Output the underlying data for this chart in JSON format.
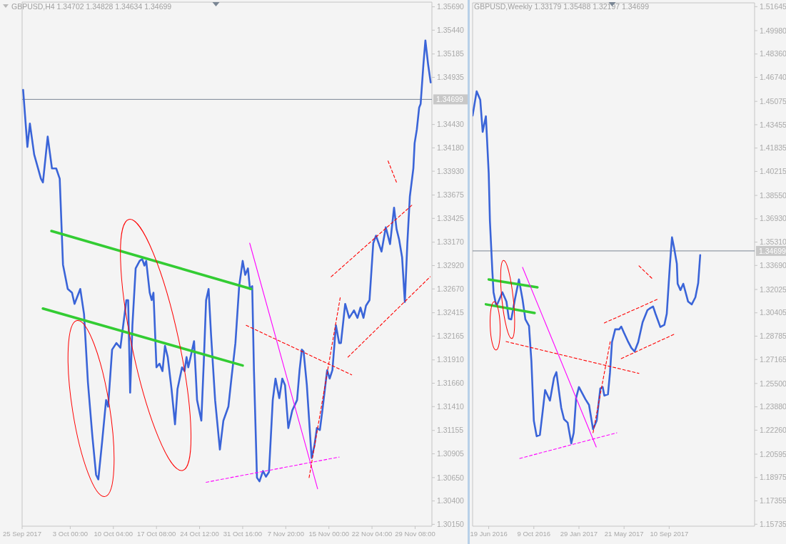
{
  "chart_data": [
    {
      "type": "line",
      "title": "GBPUSD,H4 1.34702 1.34828 1.34634 1.34699",
      "xlim": [
        "2017-09-25T00:00",
        "2017-12-02T03:00"
      ],
      "ylim": [
        1.3013,
        1.3574
      ],
      "xticks": [
        {
          "value": "2017-09-25T00:00",
          "label": "25 Sep 2017"
        },
        {
          "value": "2017-10-03T00:00",
          "label": "3 Oct 00:00"
        },
        {
          "value": "2017-10-10T04:00",
          "label": "10 Oct 04:00"
        },
        {
          "value": "2017-10-17T08:00",
          "label": "17 Oct 08:00"
        },
        {
          "value": "2017-10-24T12:00",
          "label": "24 Oct 12:00"
        },
        {
          "value": "2017-10-31T16:00",
          "label": "31 Oct 16:00"
        },
        {
          "value": "2017-11-07T20:00",
          "label": "7 Nov 20:00"
        },
        {
          "value": "2017-11-15T00:00",
          "label": "15 Nov 00:00"
        },
        {
          "value": "2017-11-22T04:00",
          "label": "22 Nov 04:00"
        },
        {
          "value": "2017-11-29T08:00",
          "label": "29 Nov 08:00"
        }
      ],
      "yticks": [
        {
          "value": 1.3569,
          "label": "1.35690"
        },
        {
          "value": 1.3544,
          "label": "1.35440"
        },
        1.35185,
        1.34935,
        {
          "value": 1.3443,
          "label": "1.34430"
        },
        {
          "value": 1.3418,
          "label": "1.34180"
        },
        {
          "value": 1.3393,
          "label": "1.33930"
        },
        1.33675,
        1.33425,
        {
          "value": 1.3317,
          "label": "1.33170"
        },
        {
          "value": 1.3292,
          "label": "1.32920"
        },
        {
          "value": 1.3267,
          "label": "1.32670"
        },
        1.32415,
        1.32165,
        {
          "value": 1.3191,
          "label": "1.31910"
        },
        {
          "value": 1.3166,
          "label": "1.31660"
        },
        {
          "value": 1.3141,
          "label": "1.31410"
        },
        1.31155,
        1.30905,
        {
          "value": 1.3065,
          "label": "1.30650"
        },
        {
          "value": 1.304,
          "label": "1.30400"
        },
        {
          "value": 1.3015,
          "label": "1.30150"
        }
      ],
      "ref_lines": [
        {
          "axis": "y",
          "value": 1.34699,
          "label": "1.34699",
          "color": "#7a8694"
        }
      ],
      "series": [
        {
          "color": "#3a64d8",
          "x": [
            "2017-09-25T04:00",
            "2017-09-25T21:00",
            "2017-09-26T07:00",
            "2017-09-27T00:00",
            "2017-09-28T03:00",
            "2017-09-28T11:00",
            "2017-09-29T06:00",
            "2017-09-29T23:00",
            "2017-09-30T16:00",
            "2017-10-01T06:00",
            "2017-10-01T19:00",
            "2017-10-02T14:00",
            "2017-10-03T07:00",
            "2017-10-03T17:00",
            "2017-10-04T16:00",
            "2017-10-05T07:00",
            "2017-10-05T22:30",
            "2017-10-06T16:00",
            "2017-10-07T07:00",
            "2017-10-07T16:00",
            "2017-10-08T07:00",
            "2017-10-08T23:00",
            "2017-10-09T07:00",
            "2017-10-09T23:00",
            "2017-10-10T16:00",
            "2017-10-11T08:00",
            "2017-10-12T08:00",
            "2017-10-12T15:00",
            "2017-10-12T23:00",
            "2017-10-13T08:00",
            "2017-10-13T21:00",
            "2017-10-14T13:00",
            "2017-10-14T23:00",
            "2017-10-15T08:00",
            "2017-10-15T15:00",
            "2017-10-16T05:00",
            "2017-10-16T13:00",
            "2017-10-16T20:00",
            "2017-10-17T08:00",
            "2017-10-17T20:00",
            "2017-10-18T08:00",
            "2017-10-18T18:00",
            "2017-10-19T05:00",
            "2017-10-19T20:00",
            "2017-10-20T10:00",
            "2017-10-20T20:00",
            "2017-10-21T14:00",
            "2017-10-22T00:00",
            "2017-10-22T08:00",
            "2017-10-22T15:00",
            "2017-10-23T14:00",
            "2017-10-24T02:00",
            "2017-10-24T19:00",
            "2017-10-25T05:00",
            "2017-10-25T14:00",
            "2017-10-26T00:00",
            "2017-10-26T10:00",
            "2017-10-27T02:00",
            "2017-10-27T21:00",
            "2017-10-28T11:00",
            "2017-10-29T07:00",
            "2017-10-29T19:00",
            "2017-10-30T11:00",
            "2017-10-31T02:00",
            "2017-10-31T16:00",
            "2017-11-01T02:00",
            "2017-11-01T13:00",
            "2017-11-01T21:00",
            "2017-11-02T06:00",
            "2017-11-02T13:00",
            "2017-11-03T01:00",
            "2017-11-03T11:00",
            "2017-11-04T01:00",
            "2017-11-04T13:00",
            "2017-11-05T01:00",
            "2017-11-05T16:00",
            "2017-11-06T03:00",
            "2017-11-06T18:00",
            "2017-11-07T06:00",
            "2017-11-07T17:00",
            "2017-11-08T06:00",
            "2017-11-08T22:00",
            "2017-11-09T17:00",
            "2017-11-10T03:00",
            "2017-11-10T12:00",
            "2017-11-10T19:00",
            "2017-11-11T08:00",
            "2017-11-12T03:00",
            "2017-11-12T14:00",
            "2017-11-13T00:00",
            "2017-11-13T12:00",
            "2017-11-13T22:00",
            "2017-11-14T17:00",
            "2017-11-15T03:00",
            "2017-11-15T14:00",
            "2017-11-16T04:00",
            "2017-11-16T17:00",
            "2017-11-17T00:00",
            "2017-11-17T17:00",
            "2017-11-18T09:00",
            "2017-11-19T04:00",
            "2017-11-19T18:00",
            "2017-11-20T06:00",
            "2017-11-20T18:00",
            "2017-11-21T04:00",
            "2017-11-21T18:00",
            "2017-11-22T09:00",
            "2017-11-22T20:00",
            "2017-11-23T18:00",
            "2017-11-24T11:00",
            "2017-11-25T04:00",
            "2017-11-25T20:00",
            "2017-11-26T06:00",
            "2017-11-26T16:00",
            "2017-11-27T04:00",
            "2017-11-27T15:00",
            "2017-11-28T01:00",
            "2017-11-28T11:00",
            "2017-11-29T01:00",
            "2017-11-29T06:00",
            "2017-11-29T15:00",
            "2017-11-30T00:00",
            "2017-11-30T06:00",
            "2017-11-30T17:00",
            "2017-12-01T01:00",
            "2017-12-01T12:00",
            "2017-12-01T22:00"
          ],
          "values": [
            1.348,
            1.3419,
            1.3444,
            1.3411,
            1.3385,
            1.3381,
            1.343,
            1.3396,
            1.3396,
            1.3385,
            1.3293,
            1.3267,
            1.3263,
            1.3251,
            1.3267,
            1.324,
            1.3167,
            1.311,
            1.3068,
            1.3063,
            1.3103,
            1.3148,
            1.3141,
            1.3202,
            1.3209,
            1.3204,
            1.3255,
            1.3255,
            1.3156,
            1.3228,
            1.3289,
            1.3297,
            1.3299,
            1.3292,
            1.3297,
            1.3263,
            1.3255,
            1.3263,
            1.3183,
            1.3187,
            1.3179,
            1.3206,
            1.3194,
            1.316,
            1.3122,
            1.316,
            1.3183,
            1.3179,
            1.3194,
            1.3183,
            1.3211,
            1.3148,
            1.3126,
            1.319,
            1.3255,
            1.3267,
            1.3217,
            1.3148,
            1.3095,
            1.3126,
            1.3141,
            1.3171,
            1.3209,
            1.327,
            1.3297,
            1.3282,
            1.3289,
            1.3267,
            1.327,
            1.3179,
            1.3065,
            1.3061,
            1.3072,
            1.3066,
            1.3071,
            1.3148,
            1.3171,
            1.315,
            1.3171,
            1.3164,
            1.3118,
            1.3137,
            1.3148,
            1.318,
            1.3202,
            1.32,
            1.3164,
            1.3086,
            1.3099,
            1.3118,
            1.3116,
            1.3137,
            1.318,
            1.3171,
            1.318,
            1.3228,
            1.3209,
            1.3209,
            1.3251,
            1.3236,
            1.3244,
            1.3236,
            1.3247,
            1.3236,
            1.3249,
            1.3255,
            1.3316,
            1.3324,
            1.3307,
            1.3333,
            1.3315,
            1.3354,
            1.3331,
            1.332,
            1.3301,
            1.3253,
            1.3316,
            1.3366,
            1.3396,
            1.3423,
            1.3438,
            1.3461,
            1.3465,
            1.3507,
            1.3533,
            1.3507,
            1.3488
          ]
        },
        {
          "type": "line",
          "color": "#33cc33",
          "line_style": "solid",
          "x": [
            "2017-09-29T21:00",
            "2017-11-02T02:00"
          ],
          "values": [
            1.3329,
            1.3267
          ]
        },
        {
          "type": "line",
          "color": "#33cc33",
          "line_style": "solid",
          "x": [
            "2017-09-28T11:00",
            "2017-10-31T16:00"
          ],
          "values": [
            1.3246,
            1.3185
          ]
        },
        {
          "type": "line",
          "color": "#ff00ff",
          "line_style": "solid",
          "x": [
            "2017-11-01T20:00",
            "2017-11-13T03:00"
          ],
          "values": [
            1.3316,
            1.3053
          ]
        },
        {
          "type": "line",
          "color": "#ff00ff",
          "line_style": "dashed",
          "x": [
            "2017-10-25T14:00",
            "2017-11-16T17:00"
          ],
          "values": [
            1.306,
            1.3087
          ]
        },
        {
          "type": "line",
          "color": "#ff0000",
          "line_style": "dashed",
          "x": [
            "2017-11-01T06:00",
            "2017-11-18T19:00"
          ],
          "values": [
            1.3228,
            1.3175
          ]
        },
        {
          "type": "line",
          "color": "#ff0000",
          "line_style": "dashed",
          "x": [
            "2017-11-11T17:00",
            "2017-11-16T22:00"
          ],
          "values": [
            1.3065,
            1.3259
          ]
        },
        {
          "type": "line",
          "color": "#ff0000",
          "line_style": "dashed",
          "x": [
            "2017-11-18T04:00",
            "2017-12-01T20:00"
          ],
          "values": [
            1.3194,
            1.328
          ]
        },
        {
          "type": "line",
          "color": "#ff0000",
          "line_style": "dashed",
          "x": [
            "2017-11-15T09:00",
            "2017-11-29T01:00"
          ],
          "values": [
            1.328,
            1.3358
          ]
        },
        {
          "type": "line",
          "color": "#ff0000",
          "line_style": "dashed",
          "x": [
            "2017-11-24T20:00",
            "2017-11-26T06:00"
          ],
          "values": [
            1.3404,
            1.3381
          ]
        }
      ]
    },
    {
      "type": "line",
      "title": "GBPUSD,Weekly 1.33179 1.35488 1.32197 1.34699",
      "xlim": [
        "2016-05-10",
        "2018-04-10"
      ],
      "ylim": [
        1.156,
        1.5191
      ],
      "xticks": [
        {
          "value": "2016-06-19",
          "label": "19 Jun 2016"
        },
        {
          "value": "2016-10-09",
          "label": "9 Oct 2016"
        },
        {
          "value": "2017-01-29",
          "label": "29 Jan 2017"
        },
        {
          "value": "2017-05-21",
          "label": "21 May 2017"
        },
        {
          "value": "2017-09-10",
          "label": "10 Sep 2017"
        }
      ],
      "yticks": [
        1.51645,
        {
          "value": 1.4998,
          "label": "1.49980"
        },
        {
          "value": 1.4836,
          "label": "1.48360"
        },
        {
          "value": 1.4674,
          "label": "1.46740"
        },
        1.45075,
        1.43455,
        1.41835,
        1.40215,
        {
          "value": 1.3855,
          "label": "1.38550"
        },
        {
          "value": 1.3693,
          "label": "1.36930"
        },
        {
          "value": 1.3531,
          "label": "1.35310"
        },
        {
          "value": 1.3369,
          "label": "1.33690"
        },
        1.32025,
        1.30405,
        1.28785,
        1.27165,
        {
          "value": 1.255,
          "label": "1.25500"
        },
        {
          "value": 1.2388,
          "label": "1.23880"
        },
        {
          "value": 1.2226,
          "label": "1.22260"
        },
        1.20595,
        1.18975,
        1.17355,
        1.15735
      ],
      "ref_lines": [
        {
          "axis": "y",
          "value": 1.34699,
          "label": "1.34699",
          "color": "#7a8694"
        }
      ],
      "series": [
        {
          "color": "#3a64d8",
          "x": [
            "2016-05-10",
            "2016-05-20",
            "2016-05-29",
            "2016-06-04",
            "2016-06-12",
            "2016-06-19",
            "2016-06-22",
            "2016-06-28",
            "2016-07-01",
            "2016-07-07",
            "2016-07-10",
            "2016-07-23",
            "2016-08-02",
            "2016-08-08",
            "2016-08-14",
            "2016-08-23",
            "2016-09-02",
            "2016-09-11",
            "2016-09-18",
            "2016-09-27",
            "2016-10-03",
            "2016-10-09",
            "2016-10-16",
            "2016-10-24",
            "2016-10-31",
            "2016-11-06",
            "2016-11-18",
            "2016-11-28",
            "2016-12-04",
            "2016-12-16",
            "2016-12-23",
            "2017-01-01",
            "2017-01-10",
            "2017-01-16",
            "2017-01-22",
            "2017-01-29",
            "2017-02-14",
            "2017-02-23",
            "2017-03-05",
            "2017-03-14",
            "2017-03-23",
            "2017-03-29",
            "2017-04-02",
            "2017-04-11",
            "2017-04-16",
            "2017-04-21",
            "2017-04-29",
            "2017-05-09",
            "2017-05-14",
            "2017-05-21",
            "2017-05-30",
            "2017-06-08",
            "2017-06-16",
            "2017-06-25",
            "2017-07-06",
            "2017-07-18",
            "2017-07-23",
            "2017-08-01",
            "2017-08-07",
            "2017-08-19",
            "2017-08-29",
            "2017-09-04",
            "2017-09-10",
            "2017-09-12",
            "2017-09-17",
            "2017-09-22",
            "2017-09-29",
            "2017-10-01",
            "2017-10-08",
            "2017-10-15",
            "2017-10-27",
            "2017-11-05",
            "2017-11-14",
            "2017-11-21",
            "2017-11-26"
          ],
          "values": [
            1.4409,
            1.4577,
            1.4518,
            1.4296,
            1.4404,
            1.4009,
            1.3677,
            1.3331,
            1.3183,
            1.3099,
            1.3099,
            1.3183,
            1.3118,
            1.3,
            1.2995,
            1.3133,
            1.3272,
            1.3133,
            1.2995,
            1.295,
            1.2703,
            1.2292,
            1.2184,
            1.2193,
            1.2357,
            1.2505,
            1.2431,
            1.2589,
            1.2629,
            1.2381,
            1.2302,
            1.2278,
            1.2134,
            1.2208,
            1.2451,
            1.2525,
            1.2441,
            1.2401,
            1.2233,
            1.2292,
            1.2515,
            1.2525,
            1.2466,
            1.2475,
            1.2624,
            1.2836,
            1.2926,
            1.2926,
            1.2945,
            1.2901,
            1.2846,
            1.2797,
            1.2772,
            1.2836,
            1.2975,
            1.3059,
            1.3069,
            1.3084,
            1.3034,
            1.2942,
            1.2957,
            1.3034,
            1.3296,
            1.3381,
            1.3564,
            1.3494,
            1.3381,
            1.3242,
            1.3198,
            1.3242,
            1.3118,
            1.3099,
            1.3148,
            1.3247,
            1.3441
          ]
        },
        {
          "type": "line",
          "color": "#33cc33",
          "line_style": "solid",
          "x": [
            "2016-06-19",
            "2016-10-18"
          ],
          "values": [
            1.3272,
            1.3217
          ]
        },
        {
          "type": "line",
          "color": "#33cc33",
          "line_style": "solid",
          "x": [
            "2016-06-12",
            "2016-10-11"
          ],
          "values": [
            1.3099,
            1.3039
          ]
        },
        {
          "type": "line",
          "color": "#ff00ff",
          "line_style": "solid",
          "x": [
            "2016-09-11",
            "2017-03-13"
          ],
          "values": [
            1.3356,
            1.2109
          ]
        },
        {
          "type": "line",
          "color": "#ff00ff",
          "line_style": "dashed",
          "x": [
            "2016-09-04",
            "2017-05-03"
          ],
          "values": [
            1.203,
            1.2208
          ]
        },
        {
          "type": "line",
          "color": "#ff0000",
          "line_style": "dashed",
          "x": [
            "2016-08-01",
            "2017-06-27"
          ],
          "values": [
            1.2841,
            1.262
          ]
        },
        {
          "type": "line",
          "color": "#ff0000",
          "line_style": "dashed",
          "x": [
            "2017-03-05",
            "2017-04-17"
          ],
          "values": [
            1.2208,
            1.2846
          ]
        },
        {
          "type": "line",
          "color": "#ff0000",
          "line_style": "dashed",
          "x": [
            "2017-04-02",
            "2017-08-11"
          ],
          "values": [
            1.297,
            1.3133
          ]
        },
        {
          "type": "line",
          "color": "#ff0000",
          "line_style": "dashed",
          "x": [
            "2017-05-14",
            "2017-09-22"
          ],
          "values": [
            1.2723,
            1.2891
          ]
        },
        {
          "type": "line",
          "color": "#ff0000",
          "line_style": "dashed",
          "x": [
            "2017-06-27",
            "2017-08-01"
          ],
          "values": [
            1.3366,
            1.3272
          ]
        }
      ]
    }
  ]
}
